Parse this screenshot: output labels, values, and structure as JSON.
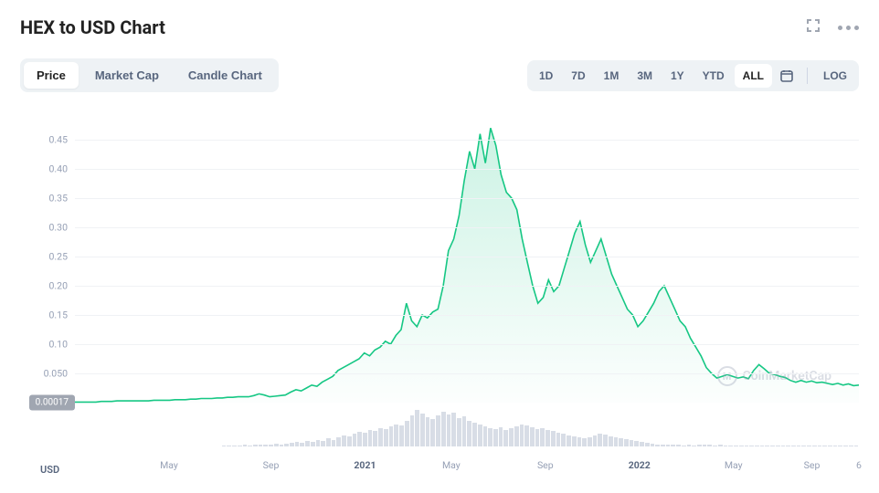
{
  "title": "HEX to USD Chart",
  "tabs": [
    {
      "label": "Price",
      "active": true
    },
    {
      "label": "Market Cap",
      "active": false
    },
    {
      "label": "Candle Chart",
      "active": false
    }
  ],
  "ranges": [
    {
      "label": "1D",
      "active": false
    },
    {
      "label": "7D",
      "active": false
    },
    {
      "label": "1M",
      "active": false
    },
    {
      "label": "3M",
      "active": false
    },
    {
      "label": "1Y",
      "active": false
    },
    {
      "label": "YTD",
      "active": false
    },
    {
      "label": "ALL",
      "active": true
    }
  ],
  "log_label": "LOG",
  "currency_label": "USD",
  "watermark": "CoinMarketCap",
  "chart": {
    "type": "area",
    "line_color": "#16c784",
    "fill_top": "rgba(22,199,132,0.22)",
    "fill_bottom": "rgba(22,199,132,0.01)",
    "line_width": 1.6,
    "grid_color": "#f0f2f5",
    "background": "#ffffff",
    "ylim": [
      0,
      0.5
    ],
    "yticks": [
      0.05,
      0.1,
      0.15,
      0.2,
      0.25,
      0.3,
      0.35,
      0.4,
      0.45
    ],
    "ytick_labels": [
      "0.050",
      "0.10",
      "0.15",
      "0.20",
      "0.25",
      "0.30",
      "0.35",
      "0.40",
      "0.45"
    ],
    "start_value_label": "0.00017",
    "xticks": [
      {
        "pos": 0.12,
        "label": "May",
        "bold": false
      },
      {
        "pos": 0.25,
        "label": "Sep",
        "bold": false
      },
      {
        "pos": 0.37,
        "label": "2021",
        "bold": true
      },
      {
        "pos": 0.48,
        "label": "May",
        "bold": false
      },
      {
        "pos": 0.6,
        "label": "Sep",
        "bold": false
      },
      {
        "pos": 0.72,
        "label": "2022",
        "bold": true
      },
      {
        "pos": 0.84,
        "label": "May",
        "bold": false
      },
      {
        "pos": 0.94,
        "label": "Sep",
        "bold": false
      },
      {
        "pos": 1.0,
        "label": "6",
        "bold": false
      }
    ],
    "series": [
      0.001,
      0.001,
      0.001,
      0.001,
      0.001,
      0.002,
      0.002,
      0.002,
      0.003,
      0.003,
      0.003,
      0.003,
      0.003,
      0.003,
      0.003,
      0.004,
      0.004,
      0.004,
      0.004,
      0.005,
      0.005,
      0.005,
      0.006,
      0.006,
      0.007,
      0.007,
      0.007,
      0.008,
      0.008,
      0.009,
      0.009,
      0.01,
      0.01,
      0.01,
      0.012,
      0.015,
      0.013,
      0.01,
      0.011,
      0.012,
      0.013,
      0.018,
      0.022,
      0.02,
      0.025,
      0.03,
      0.028,
      0.035,
      0.04,
      0.045,
      0.055,
      0.06,
      0.065,
      0.07,
      0.075,
      0.085,
      0.08,
      0.09,
      0.095,
      0.105,
      0.1,
      0.115,
      0.125,
      0.17,
      0.14,
      0.13,
      0.15,
      0.145,
      0.155,
      0.16,
      0.2,
      0.26,
      0.28,
      0.32,
      0.38,
      0.43,
      0.4,
      0.46,
      0.41,
      0.47,
      0.44,
      0.39,
      0.36,
      0.35,
      0.33,
      0.28,
      0.24,
      0.2,
      0.17,
      0.18,
      0.21,
      0.19,
      0.2,
      0.23,
      0.26,
      0.29,
      0.31,
      0.27,
      0.24,
      0.26,
      0.28,
      0.25,
      0.22,
      0.2,
      0.18,
      0.16,
      0.15,
      0.13,
      0.14,
      0.155,
      0.17,
      0.19,
      0.2,
      0.18,
      0.16,
      0.14,
      0.13,
      0.11,
      0.095,
      0.08,
      0.06,
      0.05,
      0.042,
      0.045,
      0.048,
      0.045,
      0.042,
      0.044,
      0.041,
      0.055,
      0.065,
      0.058,
      0.05,
      0.048,
      0.045,
      0.043,
      0.038,
      0.035,
      0.038,
      0.035,
      0.037,
      0.034,
      0.035,
      0.033,
      0.031,
      0.033,
      0.03,
      0.032,
      0.029,
      0.03
    ],
    "volume": [
      0,
      0,
      0,
      0,
      0,
      0,
      0,
      0,
      0,
      0,
      0,
      0,
      0,
      0,
      0,
      0,
      0,
      0,
      0,
      0,
      0,
      0,
      0,
      0,
      0,
      0,
      0,
      0,
      0.02,
      0.03,
      0.03,
      0.02,
      0.04,
      0.03,
      0.05,
      0.04,
      0.06,
      0.05,
      0.07,
      0.06,
      0.08,
      0.1,
      0.12,
      0.1,
      0.15,
      0.12,
      0.18,
      0.15,
      0.22,
      0.18,
      0.25,
      0.3,
      0.28,
      0.35,
      0.4,
      0.38,
      0.45,
      0.42,
      0.5,
      0.48,
      0.55,
      0.6,
      0.58,
      0.7,
      0.85,
      1.0,
      0.9,
      0.8,
      0.75,
      0.85,
      0.95,
      0.88,
      0.92,
      0.78,
      0.82,
      0.7,
      0.65,
      0.6,
      0.55,
      0.5,
      0.48,
      0.52,
      0.45,
      0.5,
      0.55,
      0.6,
      0.58,
      0.52,
      0.48,
      0.5,
      0.45,
      0.42,
      0.38,
      0.35,
      0.3,
      0.28,
      0.25,
      0.22,
      0.26,
      0.3,
      0.35,
      0.32,
      0.28,
      0.25,
      0.22,
      0.2,
      0.18,
      0.15,
      0.12,
      0.1,
      0.08,
      0.06,
      0.05,
      0.04,
      0.05,
      0.04,
      0.03,
      0.04,
      0.03,
      0.04,
      0.05,
      0.04,
      0.03,
      0.04,
      0.03,
      0.02,
      0.03,
      0.02,
      0.03,
      0.02,
      0.03,
      0.02,
      0.02,
      0.03,
      0.02,
      0.02,
      0.02,
      0.02,
      0.02,
      0.02,
      0.02,
      0.02,
      0.02,
      0.02,
      0.02,
      0.02,
      0.02,
      0.02,
      0.02,
      0.02
    ]
  }
}
